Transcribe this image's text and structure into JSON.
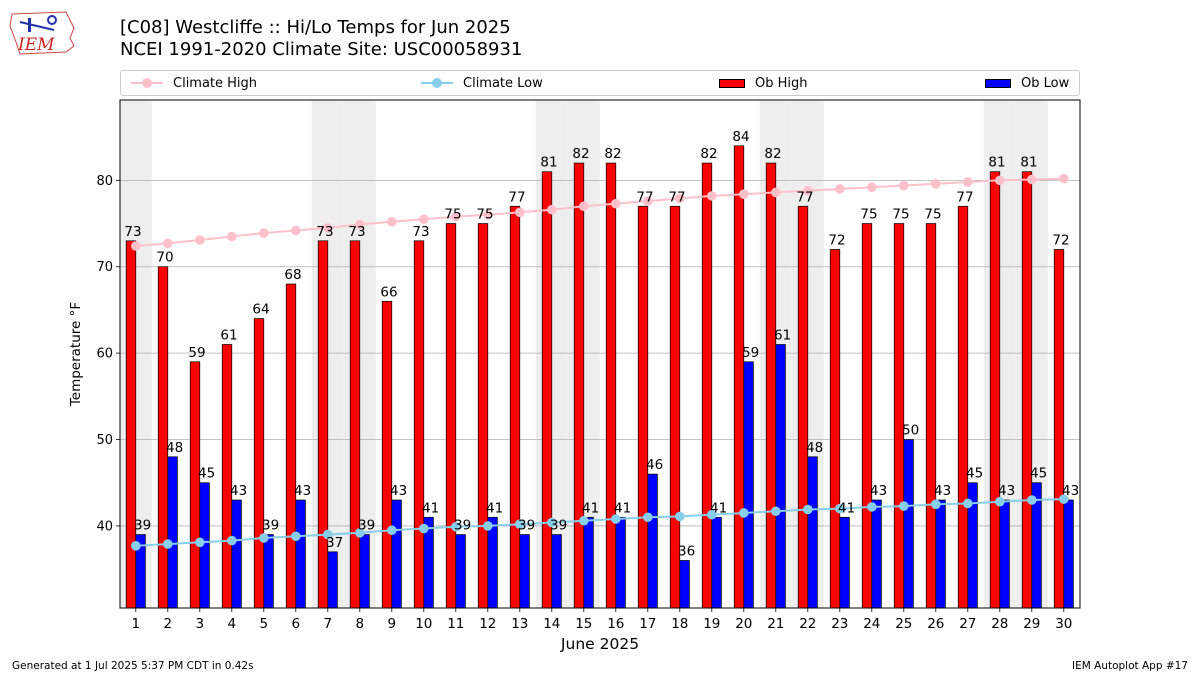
{
  "header": {
    "title_line1": "[C08] Westcliffe :: Hi/Lo Temps for Jun 2025",
    "title_line2": "NCEI 1991-2020 Climate Site: USC00058931",
    "logo_text": "IEM"
  },
  "legend": {
    "climate_high": "Climate High",
    "climate_low": "Climate Low",
    "ob_high": "Ob High",
    "ob_low": "Ob Low"
  },
  "colors": {
    "ob_high": "#ff0000",
    "ob_low": "#0000ff",
    "climate_high": "#ffc0cb",
    "climate_low": "#87ceeb",
    "weekend_shade": "#eeeeee",
    "grid": "#b0b0b0"
  },
  "chart_data": {
    "type": "bar",
    "xlabel": "June 2025",
    "ylabel": "Temperature °F",
    "ylim": [
      30.5,
      89.3
    ],
    "yticks": [
      40,
      50,
      60,
      70,
      80
    ],
    "grid": "horizontal",
    "legend_position": "top",
    "categories": [
      "1",
      "2",
      "3",
      "4",
      "5",
      "6",
      "7",
      "8",
      "9",
      "10",
      "11",
      "12",
      "13",
      "14",
      "15",
      "16",
      "17",
      "18",
      "19",
      "20",
      "21",
      "22",
      "23",
      "24",
      "25",
      "26",
      "27",
      "28",
      "29",
      "30"
    ],
    "shaded_days": [
      1,
      7,
      8,
      14,
      15,
      21,
      22,
      28,
      29
    ],
    "series": [
      {
        "name": "Ob High",
        "kind": "bar",
        "values": [
          73,
          70,
          59,
          61,
          64,
          68,
          73,
          73,
          66,
          73,
          75,
          75,
          77,
          81,
          82,
          82,
          77,
          77,
          82,
          84,
          82,
          77,
          72,
          75,
          75,
          75,
          77,
          81,
          81,
          72
        ]
      },
      {
        "name": "Ob Low",
        "kind": "bar",
        "values": [
          39,
          48,
          45,
          43,
          39,
          43,
          37,
          39,
          43,
          41,
          39,
          41,
          39,
          39,
          41,
          41,
          46,
          36,
          41,
          59,
          61,
          48,
          41,
          43,
          50,
          43,
          45,
          43,
          45,
          43
        ]
      },
      {
        "name": "Climate High",
        "kind": "line",
        "values": [
          72.4,
          72.7,
          73.1,
          73.5,
          73.9,
          74.2,
          74.5,
          74.9,
          75.2,
          75.5,
          75.8,
          76.0,
          76.3,
          76.6,
          77.0,
          77.3,
          77.6,
          77.9,
          78.2,
          78.4,
          78.6,
          78.8,
          79.0,
          79.2,
          79.4,
          79.6,
          79.8,
          80.0,
          80.1,
          80.2
        ]
      },
      {
        "name": "Climate Low",
        "kind": "line",
        "values": [
          37.7,
          37.9,
          38.1,
          38.3,
          38.6,
          38.8,
          39.0,
          39.2,
          39.5,
          39.7,
          39.9,
          40.0,
          40.2,
          40.4,
          40.6,
          40.8,
          41.0,
          41.1,
          41.3,
          41.5,
          41.7,
          41.9,
          42.0,
          42.2,
          42.3,
          42.5,
          42.6,
          42.8,
          43.0,
          43.1
        ]
      }
    ]
  },
  "footer": {
    "generated": "Generated at 1 Jul 2025 5:37 PM CDT in 0.42s",
    "app": "IEM Autoplot App #17"
  }
}
